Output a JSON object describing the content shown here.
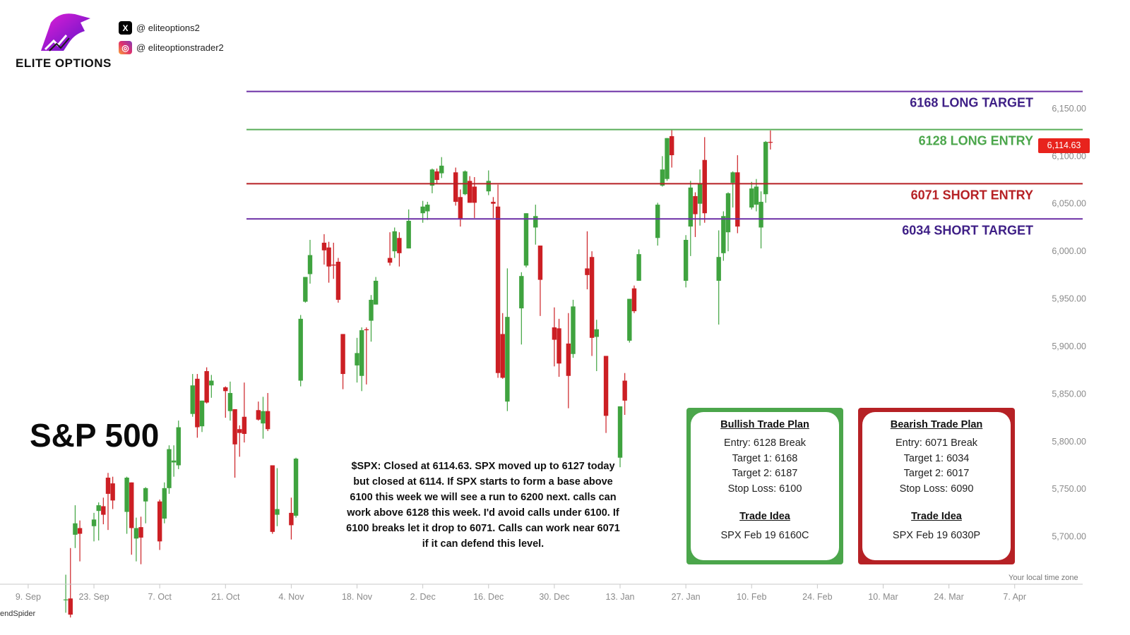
{
  "brand": {
    "name": "ELITE OPTIONS",
    "primary_color": "#7a1ed6",
    "accent_color": "#e21ed6"
  },
  "socials": [
    {
      "platform_icon": "x-icon",
      "handle": "@ eliteoptions2"
    },
    {
      "platform_icon": "instagram-icon",
      "handle": "@ eliteoptionstrader2"
    }
  ],
  "title": "S&P 500",
  "commentary": "$SPX: Closed at 6114.63. SPX moved up to 6127 today but closed at 6114. If SPX starts to form a base above 6100 this week we will see a run to 6200 next. calls can work above 6128 this week. I'd avoid calls under 6100. If 6100 breaks let it drop to 6071. Calls can work near 6071 if it can defend this level.",
  "bullish_plan": {
    "title": "Bullish Trade Plan",
    "lines": [
      "Entry: 6128 Break",
      "Target 1: 6168",
      "Target 2: 6187",
      "Stop Loss: 6100"
    ],
    "idea_title": "Trade Idea",
    "idea": "SPX Feb 19 6160C",
    "color": "#4ba64b"
  },
  "bearish_plan": {
    "title": "Bearish Trade Plan",
    "lines": [
      "Entry: 6071 Break",
      "Target 1: 6034",
      "Target 2: 6017",
      "Stop Loss: 6090"
    ],
    "idea_title": "Trade Idea",
    "idea": "SPX Feb 19 6030P",
    "color": "#b62125"
  },
  "price_badge": "6,114.63",
  "timezone_label": "Your local time zone",
  "watermark": "endSpider",
  "chart_data": {
    "type": "candlestick",
    "y_range": [
      5650,
      6190
    ],
    "y_ticks": [
      {
        "value": 6150,
        "label": "6,150.00"
      },
      {
        "value": 6100,
        "label": "6,100.00"
      },
      {
        "value": 6050,
        "label": "6,050.00"
      },
      {
        "value": 6000,
        "label": "6,000.00"
      },
      {
        "value": 5950,
        "label": "5,950.00"
      },
      {
        "value": 5900,
        "label": "5,900.00"
      },
      {
        "value": 5850,
        "label": "5,850.00"
      },
      {
        "value": 5800,
        "label": "5,800.00"
      },
      {
        "value": 5750,
        "label": "5,750.00"
      },
      {
        "value": 5700,
        "label": "5,700.00"
      }
    ],
    "x_ticks": [
      {
        "date": "2024-09-09",
        "label": "9. Sep"
      },
      {
        "date": "2024-09-23",
        "label": "23. Sep"
      },
      {
        "date": "2024-10-07",
        "label": "7. Oct"
      },
      {
        "date": "2024-10-21",
        "label": "21. Oct"
      },
      {
        "date": "2024-11-04",
        "label": "4. Nov"
      },
      {
        "date": "2024-11-18",
        "label": "18. Nov"
      },
      {
        "date": "2024-12-02",
        "label": "2. Dec"
      },
      {
        "date": "2024-12-16",
        "label": "16. Dec"
      },
      {
        "date": "2024-12-30",
        "label": "30. Dec"
      },
      {
        "date": "2025-01-13",
        "label": "13. Jan"
      },
      {
        "date": "2025-01-27",
        "label": "27. Jan"
      },
      {
        "date": "2025-02-10",
        "label": "10. Feb"
      },
      {
        "date": "2025-02-24",
        "label": "24. Feb"
      },
      {
        "date": "2025-03-10",
        "label": "10. Mar"
      },
      {
        "date": "2025-03-24",
        "label": "24. Mar"
      },
      {
        "date": "2025-04-07",
        "label": "7. Apr"
      }
    ],
    "x_range": [
      "2024-09-03",
      "2025-04-12"
    ],
    "levels": [
      {
        "value": 6168,
        "label": "6168 LONG TARGET",
        "color": "#6b2fa5",
        "label_color": "#3e1f86"
      },
      {
        "value": 6128,
        "label": "6128 LONG ENTRY",
        "color": "#5aad5a",
        "label_color": "#4ba64b"
      },
      {
        "value": 6071,
        "label": "6071  SHORT ENTRY",
        "color": "#b62125",
        "label_color": "#b62125"
      },
      {
        "value": 6034,
        "label": "6034 SHORT TARGET",
        "color": "#6b2fa5",
        "label_color": "#3e1f86"
      }
    ],
    "candles": [
      {
        "d": "2024-09-17",
        "o": 5634,
        "h": 5660,
        "l": 5620,
        "c": 5634
      },
      {
        "d": "2024-09-18",
        "o": 5635,
        "h": 5688,
        "l": 5615,
        "c": 5618
      },
      {
        "d": "2024-09-19",
        "o": 5702,
        "h": 5733,
        "l": 5688,
        "c": 5714
      },
      {
        "d": "2024-09-20",
        "o": 5709,
        "h": 5717,
        "l": 5674,
        "c": 5703
      },
      {
        "d": "2024-09-23",
        "o": 5711,
        "h": 5725,
        "l": 5695,
        "c": 5718
      },
      {
        "d": "2024-09-24",
        "o": 5727,
        "h": 5736,
        "l": 5696,
        "c": 5733
      },
      {
        "d": "2024-09-25",
        "o": 5732,
        "h": 5741,
        "l": 5713,
        "c": 5723
      },
      {
        "d": "2024-09-26",
        "o": 5762,
        "h": 5767,
        "l": 5707,
        "c": 5745
      },
      {
        "d": "2024-09-27",
        "o": 5756,
        "h": 5763,
        "l": 5729,
        "c": 5738
      },
      {
        "d": "2024-09-30",
        "o": 5726,
        "h": 5763,
        "l": 5703,
        "c": 5762
      },
      {
        "d": "2024-10-01",
        "o": 5757,
        "h": 5757,
        "l": 5681,
        "c": 5709
      },
      {
        "d": "2024-10-02",
        "o": 5698,
        "h": 5720,
        "l": 5674,
        "c": 5709
      },
      {
        "d": "2024-10-03",
        "o": 5710,
        "h": 5721,
        "l": 5671,
        "c": 5699
      },
      {
        "d": "2024-10-04",
        "o": 5737,
        "h": 5752,
        "l": 5714,
        "c": 5751
      },
      {
        "d": "2024-10-07",
        "o": 5737,
        "h": 5739,
        "l": 5686,
        "c": 5695
      },
      {
        "d": "2024-10-08",
        "o": 5719,
        "h": 5757,
        "l": 5714,
        "c": 5751
      },
      {
        "d": "2024-10-09",
        "o": 5751,
        "h": 5796,
        "l": 5745,
        "c": 5792
      },
      {
        "d": "2024-10-10",
        "o": 5778,
        "h": 5796,
        "l": 5763,
        "c": 5780
      },
      {
        "d": "2024-10-11",
        "o": 5775,
        "h": 5822,
        "l": 5771,
        "c": 5815
      },
      {
        "d": "2024-10-14",
        "o": 5829,
        "h": 5871,
        "l": 5826,
        "c": 5859
      },
      {
        "d": "2024-10-15",
        "o": 5866,
        "h": 5871,
        "l": 5804,
        "c": 5815
      },
      {
        "d": "2024-10-16",
        "o": 5816,
        "h": 5843,
        "l": 5810,
        "c": 5843
      },
      {
        "d": "2024-10-17",
        "o": 5874,
        "h": 5878,
        "l": 5840,
        "c": 5841
      },
      {
        "d": "2024-10-18",
        "o": 5859,
        "h": 5870,
        "l": 5846,
        "c": 5864
      },
      {
        "d": "2024-10-21",
        "o": 5857,
        "h": 5858,
        "l": 5825,
        "c": 5853
      },
      {
        "d": "2024-10-22",
        "o": 5832,
        "h": 5863,
        "l": 5822,
        "c": 5851
      },
      {
        "d": "2024-10-23",
        "o": 5834,
        "h": 5834,
        "l": 5762,
        "c": 5797
      },
      {
        "d": "2024-10-24",
        "o": 5813,
        "h": 5817,
        "l": 5784,
        "c": 5809
      },
      {
        "d": "2024-10-25",
        "o": 5826,
        "h": 5862,
        "l": 5799,
        "c": 5808
      },
      {
        "d": "2024-10-28",
        "o": 5833,
        "h": 5842,
        "l": 5822,
        "c": 5823
      },
      {
        "d": "2024-10-29",
        "o": 5819,
        "h": 5847,
        "l": 5803,
        "c": 5832
      },
      {
        "d": "2024-10-30",
        "o": 5832,
        "h": 5851,
        "l": 5811,
        "c": 5813
      },
      {
        "d": "2024-10-31",
        "o": 5775,
        "h": 5775,
        "l": 5703,
        "c": 5705
      },
      {
        "d": "2024-11-01",
        "o": 5723,
        "h": 5772,
        "l": 5711,
        "c": 5729
      },
      {
        "d": "2024-11-04",
        "o": 5725,
        "h": 5741,
        "l": 5697,
        "c": 5712
      },
      {
        "d": "2024-11-05",
        "o": 5722,
        "h": 5783,
        "l": 5720,
        "c": 5782
      },
      {
        "d": "2024-11-06",
        "o": 5864,
        "h": 5933,
        "l": 5858,
        "c": 5929
      },
      {
        "d": "2024-11-07",
        "o": 5947,
        "h": 5973,
        "l": 5946,
        "c": 5973
      },
      {
        "d": "2024-11-08",
        "o": 5976,
        "h": 6012,
        "l": 5966,
        "c": 5996
      },
      {
        "d": "2024-11-11",
        "o": 6009,
        "h": 6018,
        "l": 5986,
        "c": 6001
      },
      {
        "d": "2024-11-12",
        "o": 6004,
        "h": 6010,
        "l": 5967,
        "c": 5984
      },
      {
        "d": "2024-11-13",
        "o": 5986,
        "h": 6009,
        "l": 5971,
        "c": 5985
      },
      {
        "d": "2024-11-14",
        "o": 5989,
        "h": 5993,
        "l": 5946,
        "c": 5949
      },
      {
        "d": "2024-11-15",
        "o": 5913,
        "h": 5913,
        "l": 5855,
        "c": 5871
      },
      {
        "d": "2024-11-18",
        "o": 5880,
        "h": 5909,
        "l": 5862,
        "c": 5893
      },
      {
        "d": "2024-11-19",
        "o": 5869,
        "h": 5920,
        "l": 5853,
        "c": 5917
      },
      {
        "d": "2024-11-20",
        "o": 5918,
        "h": 5920,
        "l": 5860,
        "c": 5917
      },
      {
        "d": "2024-11-21",
        "o": 5927,
        "h": 5954,
        "l": 5905,
        "c": 5949
      },
      {
        "d": "2024-11-22",
        "o": 5944,
        "h": 5973,
        "l": 5944,
        "c": 5969
      },
      {
        "d": "2024-11-25",
        "o": 5993,
        "h": 6020,
        "l": 5985,
        "c": 5988
      },
      {
        "d": "2024-11-26",
        "o": 6000,
        "h": 6025,
        "l": 5993,
        "c": 6021
      },
      {
        "d": "2024-11-27",
        "o": 6014,
        "h": 6020,
        "l": 5984,
        "c": 5998
      },
      {
        "d": "2024-11-29",
        "o": 6003,
        "h": 6044,
        "l": 6003,
        "c": 6032
      },
      {
        "d": "2024-12-02",
        "o": 6040,
        "h": 6053,
        "l": 6030,
        "c": 6047
      },
      {
        "d": "2024-12-03",
        "o": 6042,
        "h": 6052,
        "l": 6033,
        "c": 6049
      },
      {
        "d": "2024-12-04",
        "o": 6069,
        "h": 6087,
        "l": 6061,
        "c": 6086
      },
      {
        "d": "2024-12-05",
        "o": 6084,
        "h": 6087,
        "l": 6071,
        "c": 6075
      },
      {
        "d": "2024-12-06",
        "o": 6082,
        "h": 6099,
        "l": 6077,
        "c": 6090
      },
      {
        "d": "2024-12-09",
        "o": 6083,
        "h": 6088,
        "l": 6048,
        "c": 6052
      },
      {
        "d": "2024-12-10",
        "o": 6057,
        "h": 6065,
        "l": 6026,
        "c": 6034
      },
      {
        "d": "2024-12-11",
        "o": 6060,
        "h": 6085,
        "l": 6059,
        "c": 6084
      },
      {
        "d": "2024-12-12",
        "o": 6074,
        "h": 6079,
        "l": 6051,
        "c": 6051
      },
      {
        "d": "2024-12-13",
        "o": 6068,
        "h": 6078,
        "l": 6035,
        "c": 6051
      },
      {
        "d": "2024-12-16",
        "o": 6063,
        "h": 6085,
        "l": 6059,
        "c": 6074
      },
      {
        "d": "2024-12-17",
        "o": 6052,
        "h": 6057,
        "l": 6035,
        "c": 6050
      },
      {
        "d": "2024-12-18",
        "o": 6047,
        "h": 6070,
        "l": 5867,
        "c": 5872
      },
      {
        "d": "2024-12-19",
        "o": 5913,
        "h": 5935,
        "l": 5866,
        "c": 5867
      },
      {
        "d": "2024-12-20",
        "o": 5842,
        "h": 5982,
        "l": 5832,
        "c": 5931
      },
      {
        "d": "2024-12-23",
        "o": 5940,
        "h": 5978,
        "l": 5902,
        "c": 5974
      },
      {
        "d": "2024-12-24",
        "o": 5985,
        "h": 6040,
        "l": 5983,
        "c": 6040
      },
      {
        "d": "2024-12-26",
        "o": 6025,
        "h": 6049,
        "l": 6007,
        "c": 6037
      },
      {
        "d": "2024-12-27",
        "o": 6006,
        "h": 6006,
        "l": 5932,
        "c": 5970
      },
      {
        "d": "2024-12-30",
        "o": 5920,
        "h": 5941,
        "l": 5879,
        "c": 5907
      },
      {
        "d": "2024-12-31",
        "o": 5919,
        "h": 5929,
        "l": 5868,
        "c": 5882
      },
      {
        "d": "2025-01-02",
        "o": 5903,
        "h": 5935,
        "l": 5835,
        "c": 5869
      },
      {
        "d": "2025-01-03",
        "o": 5892,
        "h": 5949,
        "l": 5888,
        "c": 5942
      },
      {
        "d": "2025-01-06",
        "o": 5982,
        "h": 6021,
        "l": 5960,
        "c": 5975
      },
      {
        "d": "2025-01-07",
        "o": 5994,
        "h": 6000,
        "l": 5890,
        "c": 5909
      },
      {
        "d": "2025-01-08",
        "o": 5910,
        "h": 5928,
        "l": 5874,
        "c": 5918
      },
      {
        "d": "2025-01-10",
        "o": 5890,
        "h": 5890,
        "l": 5809,
        "c": 5827
      },
      {
        "d": "2025-01-13",
        "o": 5783,
        "h": 5837,
        "l": 5773,
        "c": 5837
      },
      {
        "d": "2025-01-14",
        "o": 5864,
        "h": 5872,
        "l": 5828,
        "c": 5843
      },
      {
        "d": "2025-01-15",
        "o": 5906,
        "h": 5950,
        "l": 5904,
        "c": 5950
      },
      {
        "d": "2025-01-16",
        "o": 5961,
        "h": 5964,
        "l": 5935,
        "c": 5937
      },
      {
        "d": "2025-01-17",
        "o": 5969,
        "h": 6002,
        "l": 5969,
        "c": 5997
      },
      {
        "d": "2025-01-21",
        "o": 6014,
        "h": 6051,
        "l": 6006,
        "c": 6049
      },
      {
        "d": "2025-01-22",
        "o": 6069,
        "h": 6100,
        "l": 6068,
        "c": 6086
      },
      {
        "d": "2025-01-23",
        "o": 6076,
        "h": 6119,
        "l": 6074,
        "c": 6119
      },
      {
        "d": "2025-01-24",
        "o": 6121,
        "h": 6128,
        "l": 6088,
        "c": 6101
      },
      {
        "d": "2025-01-27",
        "o": 5969,
        "h": 6017,
        "l": 5962,
        "c": 6012
      },
      {
        "d": "2025-01-28",
        "o": 6026,
        "h": 6074,
        "l": 5995,
        "c": 6067
      },
      {
        "d": "2025-01-29",
        "o": 6058,
        "h": 6062,
        "l": 6015,
        "c": 6039
      },
      {
        "d": "2025-01-30",
        "o": 6050,
        "h": 6086,
        "l": 6027,
        "c": 6071
      },
      {
        "d": "2025-01-31",
        "o": 6096,
        "h": 6120,
        "l": 6030,
        "c": 6040
      },
      {
        "d": "2025-02-03",
        "o": 5969,
        "h": 6022,
        "l": 5923,
        "c": 5994
      },
      {
        "d": "2025-02-04",
        "o": 5998,
        "h": 6042,
        "l": 5990,
        "c": 6037
      },
      {
        "d": "2025-02-05",
        "o": 6020,
        "h": 6062,
        "l": 6000,
        "c": 6061
      },
      {
        "d": "2025-02-06",
        "o": 6072,
        "h": 6084,
        "l": 6046,
        "c": 6083
      },
      {
        "d": "2025-02-07",
        "o": 6083,
        "h": 6101,
        "l": 6019,
        "c": 6026
      },
      {
        "d": "2025-02-10",
        "o": 6046,
        "h": 6073,
        "l": 6044,
        "c": 6066
      },
      {
        "d": "2025-02-11",
        "o": 6049,
        "h": 6076,
        "l": 6042,
        "c": 6068
      },
      {
        "d": "2025-02-12",
        "o": 6025,
        "h": 6063,
        "l": 6003,
        "c": 6052
      },
      {
        "d": "2025-02-13",
        "o": 6060,
        "h": 6116,
        "l": 6051,
        "c": 6115
      },
      {
        "d": "2025-02-14",
        "o": 6115,
        "h": 6127,
        "l": 6107,
        "c": 6114.63
      }
    ]
  }
}
